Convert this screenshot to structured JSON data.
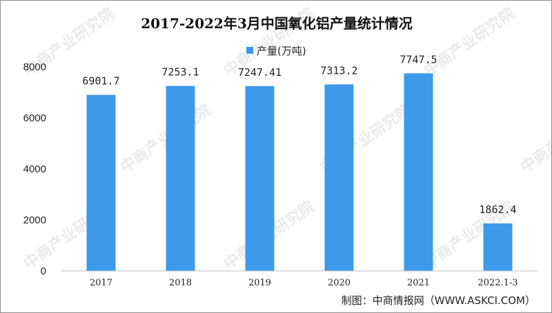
{
  "chart_data": {
    "type": "bar",
    "title": "2017-2022年3月中国氧化铝产量统计情况",
    "categories": [
      "2017",
      "2018",
      "2019",
      "2020",
      "2021",
      "2022.1-3"
    ],
    "series": [
      {
        "name": "产量(万吨)",
        "values": [
          6901.7,
          7253.1,
          7247.41,
          7313.2,
          7747.5,
          1862.4
        ]
      }
    ],
    "data_labels": [
      "6901.7",
      "7253.1",
      "7247.41",
      "7313.2",
      "7747.5",
      "1862.4"
    ],
    "yticks": [
      "0",
      "2000",
      "4000",
      "6000",
      "8000"
    ],
    "ylim": [
      0,
      8000
    ],
    "grid": false,
    "legend_position": "top",
    "bar_color": "#3d9aeb"
  },
  "source": "制图：中商情报网（WWW.ASKCI.COM）",
  "watermark": "中商产业研究院"
}
